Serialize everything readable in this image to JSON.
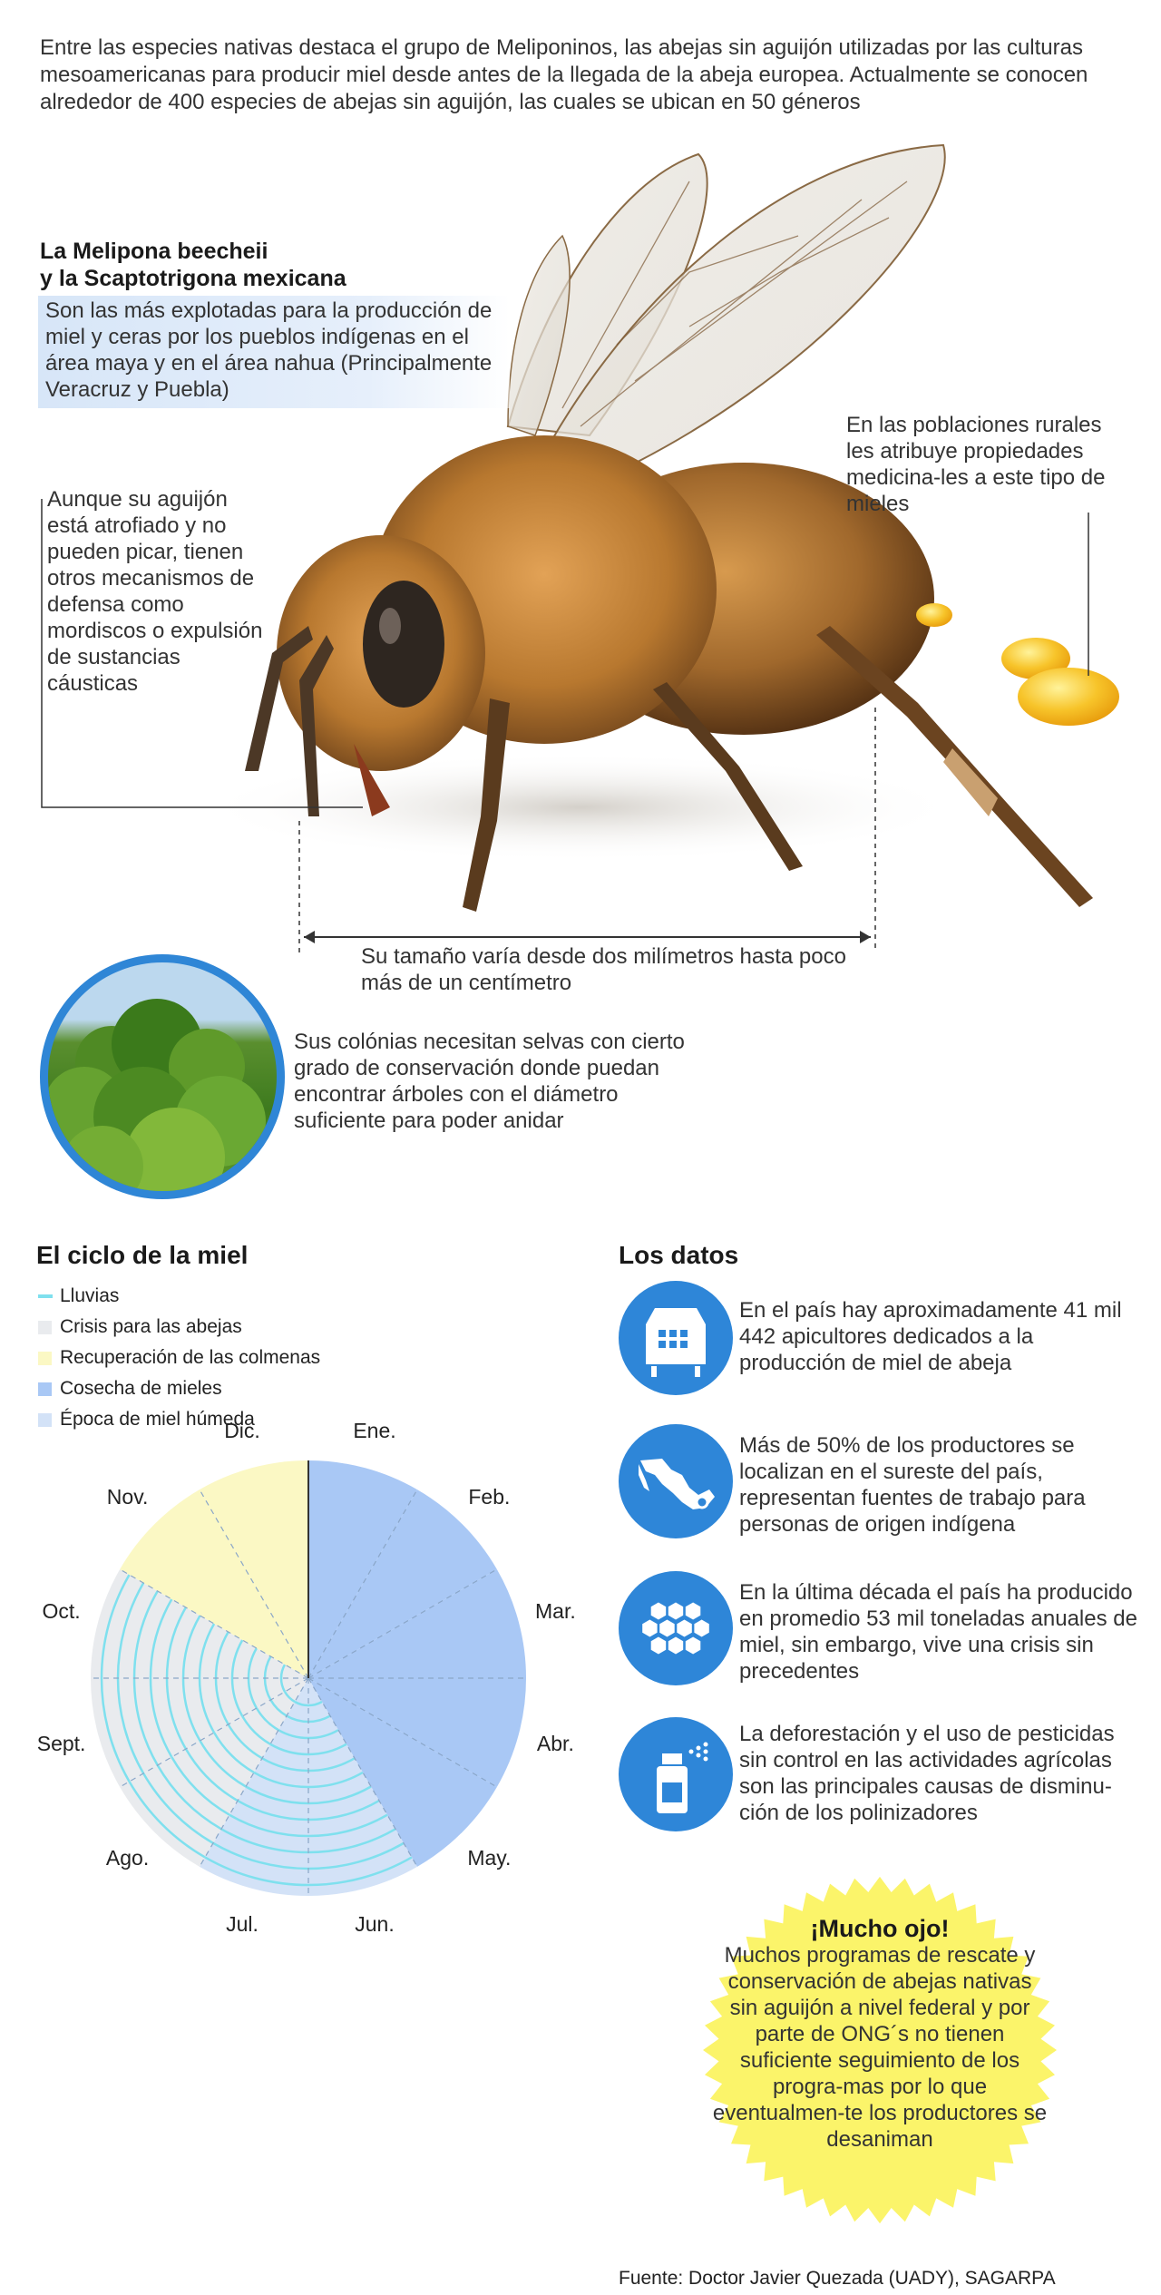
{
  "intro": "Entre las especies nativas destaca el grupo de Meliponinos, las abejas sin aguijón utilizadas por las culturas mesoamericanas para producir miel desde  antes de la llegada de la abeja europea. Actualmente se conocen alrededor de 400 especies de abejas sin aguijón, las cuales se ubican en 50 géneros",
  "melipona": {
    "title_line1": "La Melipona beecheii",
    "title_line2": "y la Scaptotrigona mexicana",
    "text": "Son las más explotadas para la producción de miel y ceras por los pueblos indígenas en el área maya y en el área nahua (Principalmente Veracruz y Puebla)"
  },
  "aguijon_text": "Aunque su aguijón está atrofiado y no pueden picar, tienen otros mecanismos de defensa como mordiscos o expulsión de sustancias cáusticas",
  "poblaciones_text": "En las poblaciones rurales les atribuye propiedades medicina-les a este tipo de mieles",
  "tamano_text": "Su tamaño varía desde dos milímetros hasta poco más de un centímetro",
  "colonias_text": "Sus colónias necesitan selvas con cierto grado de conservación donde puedan encontrar árboles con el diámetro suficiente para poder anidar",
  "ciclo": {
    "title": "El ciclo de la miel"
  },
  "datos": {
    "title": "Los datos",
    "facts": [
      {
        "icon": "beehive-icon",
        "text": "En el país hay aproximadamente 41 mil 442 apicultores dedicados a la producción de miel de abeja"
      },
      {
        "icon": "mexico-map-icon",
        "text": "Más de 50% de los productores se  localizan en el sureste del país, representan fuentes de trabajo para personas de origen indígena"
      },
      {
        "icon": "honeycomb-icon",
        "text": "En la última década el país ha producido en promedio 53 mil toneladas anuales de miel, sin embargo, vive una crisis sin precedentes"
      },
      {
        "icon": "spray-icon",
        "text": "La deforestación y el uso de pesticidas sin control en las actividades agrícolas son las principales causas de disminu-ción de los polinizadores"
      }
    ]
  },
  "ojo": {
    "title": "¡Mucho ojo!",
    "text": "Muchos programas de rescate y conservación de abejas nativas sin aguijón a nivel federal y por parte de ONG´s no tienen suficiente seguimiento de los progra-mas por lo que eventualmen-te los productores se desaniman"
  },
  "source": "Fuente: Doctor Javier Quezada (UADY), SAGARPA",
  "colors": {
    "accent_blue": "#2e86d8",
    "rain": "#7fe0ee",
    "crisis": "#e9ebee",
    "recovery": "#fbf8c4",
    "harvest": "#a9c8f5",
    "humid": "#d3e2f7",
    "burst": "#fbf46a"
  },
  "chart_data": {
    "type": "pie",
    "title": "El ciclo de la miel",
    "categories": [
      "Ene.",
      "Feb.",
      "Mar.",
      "Abr.",
      "May.",
      "Jun.",
      "Jul.",
      "Ago.",
      "Sept.",
      "Oct.",
      "Nov.",
      "Dic."
    ],
    "legend": [
      {
        "name": "Lluvias",
        "color": "#7fe0ee",
        "marker": "line"
      },
      {
        "name": "Crisis para las abejas",
        "color": "#e9ebee",
        "marker": "square"
      },
      {
        "name": "Recuperación de las colmenas",
        "color": "#fbf8c4",
        "marker": "square"
      },
      {
        "name": "Cosecha de mieles",
        "color": "#a9c8f5",
        "marker": "square"
      },
      {
        "name": "Época de miel húmeda",
        "color": "#d3e2f7",
        "marker": "square"
      }
    ],
    "month_phase": [
      "Cosecha de mieles",
      "Cosecha de mieles",
      "Cosecha de mieles",
      "Cosecha de mieles",
      "Cosecha de mieles",
      "Época de miel húmeda",
      "Época de miel húmeda",
      "Crisis para las abejas",
      "Crisis para las abejas",
      "Crisis para las abejas",
      "Recuperación de las colmenas",
      "Recuperación de las colmenas"
    ],
    "month_rain": [
      false,
      false,
      false,
      false,
      false,
      true,
      true,
      true,
      true,
      true,
      false,
      false
    ],
    "legend_position": "top-left"
  }
}
